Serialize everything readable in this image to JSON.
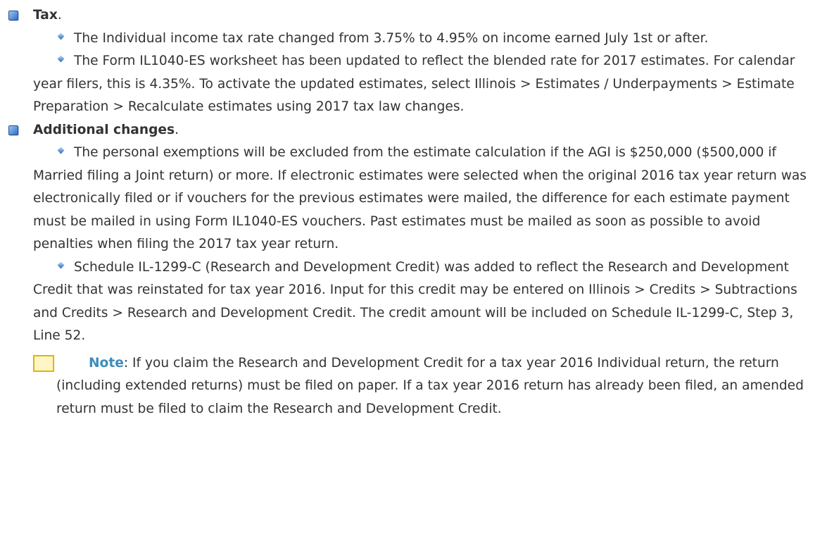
{
  "sections": [
    {
      "title": "Tax",
      "title_end": ".",
      "items": [
        "The Individual income tax rate changed from 3.75% to 4.95% on income earned July 1st or after.",
        "The Form IL1040-ES worksheet has been updated to reflect the blended rate for 2017 estimates. For calendar year filers, this is 4.35%. To activate the updated estimates, select Illinois > Estimates / Underpayments > Estimate Preparation > Recalculate estimates using 2017 tax law changes."
      ]
    },
    {
      "title": "Additional changes",
      "title_end": ".",
      "items": [
        "The personal exemptions will be excluded from the estimate calculation if the AGI is $250,000 ($500,000 if Married filing a Joint return) or more. If electronic estimates were selected when the original 2016 tax year return was electronically filed or if vouchers for the previous estimates were mailed, the difference for each estimate payment must be mailed in using Form IL1040-ES vouchers. Past estimates must be mailed as soon as possible to avoid penalties when filing the 2017 tax year return.",
        "Schedule IL-1299-C (Research and Development Credit) was added to reflect the Research and Development Credit that was reinstated for tax year 2016. Input for this credit may be entered on Illinois > Credits > Subtractions and Credits > Research and Development Credit. The credit amount will be included on Schedule IL-1299-C, Step 3, Line 52."
      ],
      "note": {
        "label": "Note",
        "text": ": If you claim the Research and Development Credit for a tax year 2016 Individual return, the return (including extended returns) must be filed on paper. If a tax year 2016 return has already been filed, an amended return must be filed to claim the Research and Development Credit."
      }
    }
  ]
}
